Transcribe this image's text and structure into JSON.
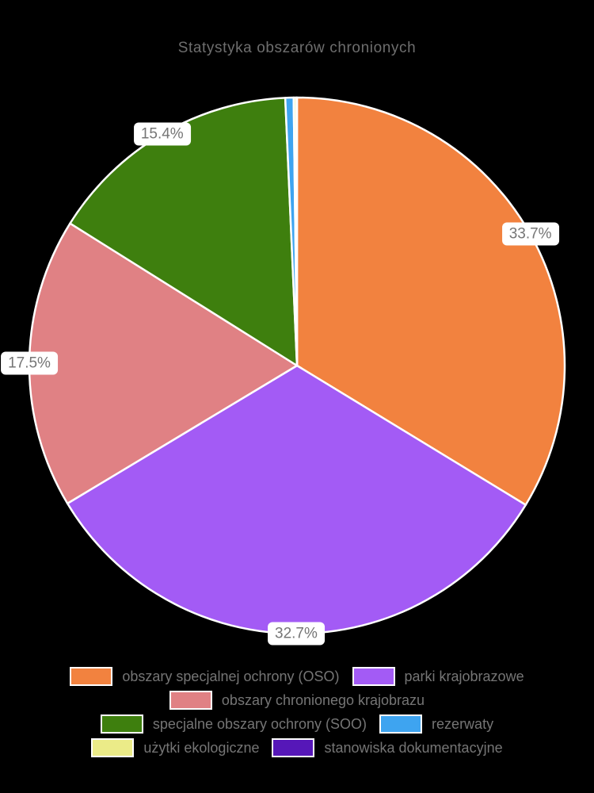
{
  "chart_data": {
    "type": "pie",
    "title": "Statystyka obszarów chronionych",
    "unit": "%",
    "direction": "clockwise",
    "start_angle_deg": 0,
    "legend_position": "bottom",
    "background": "#000000",
    "text_color": "#757575",
    "slice_border_color": "#ffffff",
    "slices": [
      {
        "label": "obszary specjalnej ochrony (OSO)",
        "value": 33.7,
        "color": "#f2823f",
        "percent_label": "33.7%"
      },
      {
        "label": "parki krajobrazowe",
        "value": 32.7,
        "color": "#a35bf5",
        "percent_label": "32.7%"
      },
      {
        "label": "obszary chronionego krajobrazu",
        "value": 17.5,
        "color": "#e08184",
        "percent_label": "17.5%"
      },
      {
        "label": "specjalne obszary ochrony (SOO)",
        "value": 15.4,
        "color": "#3e7f0e",
        "percent_label": "15.4%"
      },
      {
        "label": "rezerwaty",
        "value": 0.5,
        "color": "#3ea4f0",
        "percent_label": ""
      },
      {
        "label": "użytki ekologiczne",
        "value": 0.15,
        "color": "#ebeb88",
        "percent_label": ""
      },
      {
        "label": "stanowiska dokumentacyjne",
        "value": 0.05,
        "color": "#5617b8",
        "percent_label": ""
      }
    ],
    "displayed_percent_labels": [
      "33.7%",
      "32.7%",
      "17.5%",
      "15.4%"
    ]
  }
}
